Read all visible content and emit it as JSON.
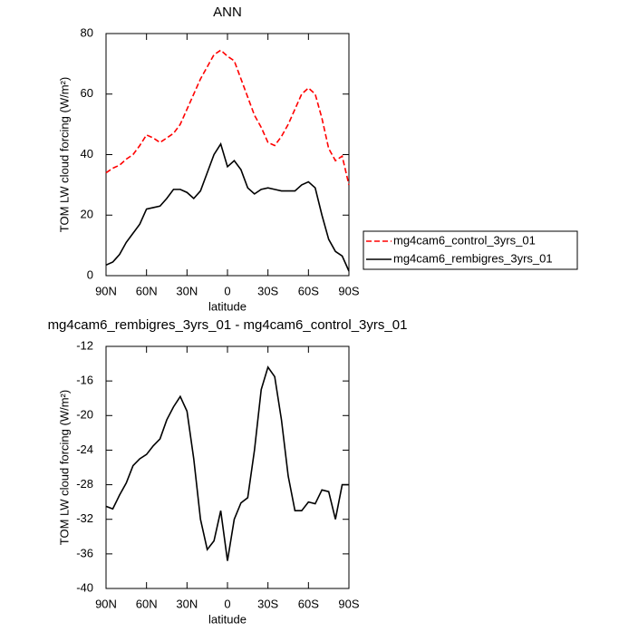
{
  "chart_data": [
    {
      "type": "line",
      "title": "ANN",
      "xlabel": "latitude",
      "ylabel": "TOM LW cloud forcing (W/m²)",
      "x": [
        90,
        85,
        80,
        75,
        70,
        65,
        60,
        55,
        50,
        45,
        40,
        35,
        30,
        25,
        20,
        15,
        10,
        5,
        0,
        -5,
        -10,
        -15,
        -20,
        -25,
        -30,
        -35,
        -40,
        -45,
        -50,
        -55,
        -60,
        -65,
        -70,
        -75,
        -80,
        -85,
        -90
      ],
      "series": [
        {
          "name": "mg4cam6_control_3yrs_01",
          "color": "#ff0000",
          "line_style": "dashed",
          "values": [
            34,
            35.5,
            36.5,
            38.5,
            40,
            43,
            46.5,
            45.5,
            44,
            45.5,
            47,
            50,
            55,
            60,
            65,
            69,
            73,
            74.5,
            72.5,
            71,
            65,
            59,
            53,
            49,
            44,
            43,
            46,
            50,
            55,
            60,
            62,
            60,
            52,
            42,
            38,
            39.5,
            30
          ]
        },
        {
          "name": "mg4cam6_rembigres_3yrs_01",
          "color": "#000000",
          "line_style": "solid",
          "values": [
            3.5,
            4.5,
            7,
            11,
            14,
            17,
            22,
            22.5,
            23,
            25.5,
            28.5,
            28.5,
            27.5,
            25.5,
            28,
            34,
            40,
            43.5,
            36,
            38,
            35,
            29,
            27,
            28.5,
            29,
            28.5,
            28,
            28,
            28,
            30,
            31,
            29,
            20,
            12,
            8,
            6.5,
            1.5
          ]
        }
      ],
      "xlim": [
        90,
        -90
      ],
      "xticks": [
        {
          "value": 90,
          "label": "90N"
        },
        {
          "value": 60,
          "label": "60N"
        },
        {
          "value": 30,
          "label": "30N"
        },
        0,
        {
          "value": -30,
          "label": "30S"
        },
        {
          "value": -60,
          "label": "60S"
        },
        {
          "value": -90,
          "label": "90S"
        }
      ],
      "ylim": [
        0,
        80
      ],
      "yticks": [
        0,
        20,
        40,
        60,
        80
      ],
      "legend": "right"
    },
    {
      "type": "line",
      "title": "mg4cam6_rembigres_3yrs_01 - mg4cam6_control_3yrs_01",
      "xlabel": "latitude",
      "ylabel": "TOM LW cloud forcing (W/m²)",
      "x": [
        90,
        85,
        80,
        75,
        70,
        65,
        60,
        55,
        50,
        45,
        40,
        35,
        30,
        25,
        20,
        15,
        10,
        5,
        0,
        -5,
        -10,
        -15,
        -20,
        -25,
        -30,
        -35,
        -40,
        -45,
        -50,
        -55,
        -60,
        -65,
        -70,
        -75,
        -80,
        -85,
        -90
      ],
      "series": [
        {
          "color": "#000000",
          "line_style": "solid",
          "values": [
            -30.5,
            -30.8,
            -29.2,
            -27.8,
            -25.8,
            -25,
            -24.5,
            -23.5,
            -22.7,
            -20.5,
            -19,
            -17.8,
            -19.5,
            -25,
            -32,
            -35.5,
            -34.5,
            -31,
            -36.8,
            -32,
            -30.1,
            -29.5,
            -24,
            -17,
            -14.4,
            -15.5,
            -20.5,
            -27,
            -31,
            -31,
            -30,
            -30.2,
            -28.6,
            -28.8,
            -32,
            -28,
            -28
          ]
        }
      ],
      "xlim": [
        90,
        -90
      ],
      "xticks": [
        {
          "value": 90,
          "label": "90N"
        },
        {
          "value": 60,
          "label": "60N"
        },
        {
          "value": 30,
          "label": "30N"
        },
        0,
        {
          "value": -30,
          "label": "30S"
        },
        {
          "value": -60,
          "label": "60S"
        },
        {
          "value": -90,
          "label": "90S"
        }
      ],
      "ylim": [
        -40,
        -12
      ],
      "yticks": [
        -40,
        -36,
        -32,
        -28,
        -24,
        -20,
        -16,
        -12
      ]
    }
  ]
}
